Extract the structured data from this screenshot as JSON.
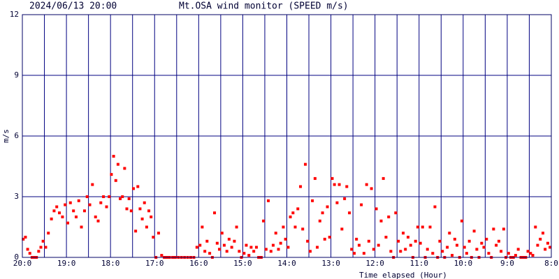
{
  "chart_data": {
    "type": "scatter",
    "title": "2024/06/13 20:00",
    "subtitle": "Mt.OSA wind monitor (SPEED m/s)",
    "xlabel": "Time elapsed (Hour)",
    "ylabel": "m/s",
    "color": "#ff0000",
    "grid": true,
    "xlim": [
      0,
      12
    ],
    "ylim": [
      0,
      12
    ],
    "yticks": [
      0,
      3,
      6,
      9,
      12
    ],
    "xticks": [
      {
        "value": 0,
        "label": "20:0"
      },
      {
        "value": 1,
        "label": "19:0"
      },
      {
        "value": 2,
        "label": "18:0"
      },
      {
        "value": 3,
        "label": "17:0"
      },
      {
        "value": 4,
        "label": "16:0"
      },
      {
        "value": 5,
        "label": "15:0"
      },
      {
        "value": 6,
        "label": "14:0"
      },
      {
        "value": 7,
        "label": "13:0"
      },
      {
        "value": 8,
        "label": "12:0"
      },
      {
        "value": 9,
        "label": "11:0"
      },
      {
        "value": 10,
        "label": "10:0"
      },
      {
        "value": 11,
        "label": "9:0"
      },
      {
        "value": 12,
        "label": "8:0"
      }
    ],
    "xminorticks": [
      0.5,
      1.5,
      2.5,
      3.5,
      4.5,
      5.5,
      6.5,
      7.5,
      8.5,
      9.5,
      10.5,
      11.5
    ],
    "x": [
      0.02,
      0.07,
      0.12,
      0.17,
      0.22,
      0.27,
      0.32,
      0.37,
      0.42,
      0.47,
      0.53,
      0.59,
      0.66,
      0.72,
      0.78,
      0.84,
      0.91,
      0.97,
      1.03,
      1.09,
      1.16,
      1.22,
      1.28,
      1.34,
      1.41,
      1.47,
      1.53,
      1.59,
      1.66,
      1.72,
      1.78,
      1.84,
      1.91,
      1.97,
      2.02,
      2.07,
      2.12,
      2.17,
      2.22,
      2.27,
      2.32,
      2.37,
      2.42,
      2.47,
      2.52,
      2.57,
      2.62,
      2.67,
      2.72,
      2.77,
      2.82,
      2.87,
      2.92,
      2.97,
      3.03,
      3.09,
      3.16,
      3.22,
      3.28,
      3.34,
      3.41,
      3.47,
      3.54,
      3.61,
      3.68,
      3.75,
      3.82,
      3.89,
      3.96,
      4.03,
      4.08,
      4.14,
      4.19,
      4.25,
      4.31,
      4.36,
      4.42,
      4.47,
      4.53,
      4.58,
      4.64,
      4.69,
      4.75,
      4.81,
      4.86,
      4.92,
      4.97,
      5.03,
      5.08,
      5.14,
      5.19,
      5.25,
      5.31,
      5.36,
      5.42,
      5.47,
      5.53,
      5.58,
      5.64,
      5.69,
      5.75,
      5.81,
      5.86,
      5.92,
      5.97,
      6.03,
      6.08,
      6.14,
      6.19,
      6.25,
      6.31,
      6.36,
      6.42,
      6.47,
      6.53,
      6.58,
      6.64,
      6.69,
      6.75,
      6.81,
      6.86,
      6.92,
      6.97,
      7.03,
      7.08,
      7.14,
      7.19,
      7.25,
      7.31,
      7.36,
      7.42,
      7.47,
      7.53,
      7.58,
      7.64,
      7.69,
      7.75,
      7.81,
      7.86,
      7.92,
      7.97,
      8.03,
      8.08,
      8.14,
      8.19,
      8.25,
      8.31,
      8.36,
      8.42,
      8.47,
      8.53,
      8.58,
      8.64,
      8.69,
      8.75,
      8.81,
      8.86,
      8.92,
      8.97,
      9.03,
      9.08,
      9.14,
      9.19,
      9.25,
      9.31,
      9.36,
      9.42,
      9.47,
      9.53,
      9.58,
      9.64,
      9.69,
      9.75,
      9.81,
      9.86,
      9.92,
      9.97,
      10.03,
      10.08,
      10.14,
      10.19,
      10.25,
      10.31,
      10.36,
      10.42,
      10.47,
      10.53,
      10.58,
      10.64,
      10.69,
      10.75,
      10.81,
      10.86,
      10.92,
      10.97,
      11.03,
      11.08,
      11.14,
      11.19,
      11.25,
      11.31,
      11.36,
      11.42,
      11.47,
      11.53,
      11.58,
      11.64,
      11.69,
      11.75,
      11.81,
      11.86,
      11.92,
      11.97
    ],
    "values": [
      0.9,
      1.0,
      0.4,
      0.2,
      0,
      0,
      0,
      0.3,
      0.5,
      0.8,
      0.5,
      1.2,
      1.9,
      2.3,
      2.5,
      2.2,
      2.0,
      2.6,
      1.7,
      2.7,
      2.3,
      2.0,
      2.8,
      1.5,
      2.3,
      3.0,
      2.6,
      3.6,
      2.0,
      1.8,
      2.7,
      3.0,
      2.5,
      3.0,
      4.1,
      5.0,
      3.8,
      4.6,
      2.9,
      3.0,
      4.4,
      2.4,
      2.9,
      2.3,
      3.4,
      1.3,
      3.5,
      2.4,
      1.9,
      2.7,
      1.5,
      2.3,
      2.0,
      1.0,
      0,
      1.2,
      0.1,
      0,
      0,
      0,
      0,
      0,
      0,
      0,
      0,
      0,
      0,
      0,
      0.5,
      0.6,
      1.5,
      0.3,
      0.8,
      0.2,
      0,
      2.2,
      0.7,
      0.4,
      1.2,
      0.6,
      0.3,
      0.9,
      0.5,
      0.8,
      1.5,
      0.3,
      0,
      0.2,
      0.6,
      0.1,
      0.5,
      0.3,
      0.5,
      0,
      0,
      1.8,
      0.4,
      2.8,
      0.3,
      0.6,
      1.2,
      0.4,
      0.7,
      1.5,
      0.9,
      0.5,
      2.0,
      2.2,
      1.5,
      2.4,
      3.5,
      1.4,
      4.6,
      0.8,
      0.3,
      2.8,
      3.9,
      0.5,
      1.8,
      2.2,
      0.9,
      2.5,
      1.0,
      3.9,
      3.6,
      2.7,
      3.6,
      1.4,
      2.9,
      3.5,
      2.2,
      0.4,
      0.2,
      0.9,
      0.6,
      2.6,
      0.2,
      3.6,
      0.8,
      3.4,
      0.4,
      2.4,
      0.6,
      1.8,
      3.9,
      1.0,
      2.0,
      0.3,
      0,
      2.2,
      0.8,
      0.3,
      1.2,
      0.4,
      1.0,
      0.6,
      0,
      0.8,
      1.5,
      0.7,
      1.5,
      0,
      0.4,
      1.5,
      0.2,
      2.5,
      0,
      0.8,
      0.3,
      0,
      0.5,
      1.2,
      0.1,
      0.9,
      0.6,
      0,
      1.8,
      0.5,
      0.2,
      0.8,
      0,
      1.3,
      0.4,
      0,
      0.7,
      0.5,
      0.9,
      0.2,
      0,
      1.4,
      0.6,
      0.8,
      0.3,
      1.4,
      0,
      0.2,
      0,
      0,
      0.1,
      0.4,
      0,
      0,
      0,
      0.3,
      0.2,
      0.1,
      1.5,
      0.6,
      0.9,
      1.2,
      0.4,
      0.7,
      0.5
    ]
  }
}
